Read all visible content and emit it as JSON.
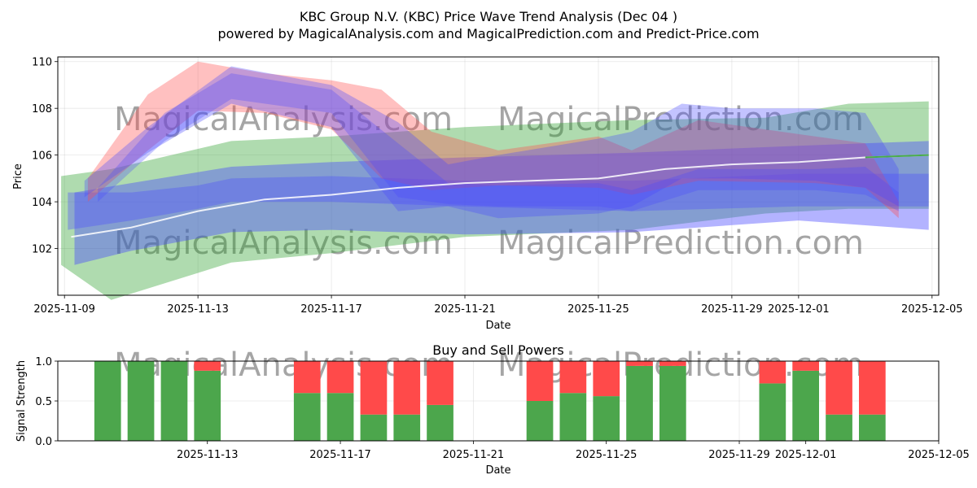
{
  "colors": {
    "green": "#2ca02c",
    "red": "#ff4a4a",
    "blue": "#4a4aff",
    "white": "#ffffff",
    "bar_green": "#4ca64c"
  },
  "chart_data": [
    {
      "type": "area",
      "title_line1": "KBC Group N.V. (KBC) Price Wave Trend Analysis (Dec 04 )",
      "title_line2": "powered by MagicalAnalysis.com and MagicalPrediction.com and Predict-Price.com",
      "xlabel": "Date",
      "ylabel": "Price",
      "ylim": [
        100.0,
        110.2
      ],
      "xlim": [
        -0.2,
        26.2
      ],
      "x_ticks": [
        {
          "label": "2025-11-09",
          "pos": 0
        },
        {
          "label": "2025-11-13",
          "pos": 4
        },
        {
          "label": "2025-11-17",
          "pos": 8
        },
        {
          "label": "2025-11-21",
          "pos": 12
        },
        {
          "label": "2025-11-25",
          "pos": 16
        },
        {
          "label": "2025-11-29",
          "pos": 20
        },
        {
          "label": "2025-12-01",
          "pos": 22
        },
        {
          "label": "2025-12-05",
          "pos": 26
        }
      ],
      "y_ticks": [
        102,
        104,
        106,
        108,
        110
      ],
      "watermarks": [
        "MagicalAnalysis.com",
        "MagicalPrediction.com"
      ],
      "bands": [
        {
          "name": "green-wide",
          "color": "green",
          "opacity": 0.38,
          "x": [
            -0.1,
            1.4,
            5,
            8,
            12,
            17,
            21,
            23.5,
            25.9
          ],
          "upper": [
            105.1,
            105.4,
            106.6,
            106.8,
            107.2,
            107.5,
            107.6,
            108.2,
            108.3
          ],
          "lower": [
            101.3,
            99.8,
            101.4,
            101.8,
            102.5,
            102.8,
            103.5,
            103.7,
            103.7
          ]
        },
        {
          "name": "blue-wide",
          "color": "blue",
          "opacity": 0.42,
          "x": [
            0.3,
            2,
            5,
            8,
            12,
            17,
            22,
            25.9
          ],
          "upper": [
            104.4,
            104.8,
            105.5,
            105.7,
            105.9,
            106.1,
            106.4,
            106.6
          ],
          "lower": [
            101.3,
            101.9,
            102.7,
            102.8,
            102.6,
            102.7,
            103.2,
            102.8
          ]
        },
        {
          "name": "blue-narrow",
          "color": "blue",
          "opacity": 0.35,
          "x": [
            0.1,
            2,
            4,
            5,
            8,
            12,
            17,
            22,
            25.9
          ],
          "upper": [
            104.4,
            104.4,
            104.7,
            105.0,
            105.1,
            104.9,
            104.9,
            105.2,
            105.2
          ],
          "lower": [
            102.8,
            103.2,
            103.7,
            104.0,
            104.0,
            103.8,
            103.6,
            103.8,
            103.8
          ]
        },
        {
          "name": "red-wave",
          "color": "red",
          "opacity": 0.35,
          "x": [
            0.7,
            2.5,
            4,
            6,
            8,
            9.5,
            11,
            13,
            16,
            17,
            19,
            22.5,
            24,
            25
          ],
          "upper": [
            105.0,
            108.6,
            110.0,
            109.5,
            109.2,
            108.8,
            107.0,
            106.2,
            106.8,
            106.2,
            107.5,
            106.8,
            106.5,
            104.0
          ],
          "lower": [
            104.0,
            106.2,
            107.9,
            107.8,
            107.1,
            105.0,
            104.5,
            104.7,
            104.6,
            104.3,
            104.9,
            104.8,
            104.6,
            103.3
          ]
        },
        {
          "name": "blue-wave",
          "color": "blue",
          "opacity": 0.33,
          "x": [
            0.6,
            2.5,
            5,
            8,
            10,
            11.5,
            13,
            16,
            17,
            18.5,
            20,
            22.5,
            24,
            25
          ],
          "upper": [
            104.9,
            107.2,
            109.8,
            109.0,
            107.4,
            105.6,
            106.0,
            106.7,
            107.0,
            108.2,
            108.0,
            108.0,
            107.8,
            105.4
          ],
          "lower": [
            104.2,
            106.1,
            108.2,
            107.2,
            103.6,
            103.8,
            103.3,
            103.5,
            103.8,
            105.0,
            105.0,
            104.9,
            104.6,
            103.8
          ]
        },
        {
          "name": "purple-core",
          "color": "blue",
          "opacity": 0.3,
          "x": [
            1.0,
            3,
            5,
            8,
            10,
            11.5,
            13,
            16,
            17,
            19,
            22.5,
            24,
            25
          ],
          "upper": [
            104.6,
            107.8,
            109.5,
            108.8,
            106.5,
            104.8,
            104.7,
            104.8,
            104.5,
            105.4,
            105.4,
            105.5,
            104.4
          ],
          "lower": [
            104.0,
            106.6,
            108.4,
            107.8,
            104.2,
            103.9,
            103.8,
            103.8,
            103.6,
            104.5,
            104.5,
            104.3,
            103.6
          ]
        }
      ],
      "series": [
        {
          "name": "center-line",
          "color": "white",
          "x": [
            0.2,
            2,
            4,
            6,
            8,
            10,
            12,
            14,
            16,
            18,
            20,
            22,
            24,
            25.9
          ],
          "values": [
            102.5,
            102.9,
            103.6,
            104.1,
            104.3,
            104.6,
            104.8,
            104.9,
            105.0,
            105.4,
            105.6,
            105.7,
            105.9,
            106.0
          ]
        },
        {
          "name": "green-mid",
          "color": "green",
          "x": [
            24,
            25.9
          ],
          "values": [
            105.9,
            106.0
          ]
        }
      ]
    },
    {
      "type": "bar",
      "title": "Buy and Sell Powers",
      "xlabel": "Date",
      "ylabel": "Signal Strength",
      "ylim": [
        0,
        1.0
      ],
      "xlim": [
        -3.5,
        23.0
      ],
      "y_ticks": [
        0.0,
        0.5,
        1.0
      ],
      "x_ticks": [
        {
          "label": "2025-11-13",
          "pos": 1
        },
        {
          "label": "2025-11-17",
          "pos": 5
        },
        {
          "label": "2025-11-21",
          "pos": 9
        },
        {
          "label": "2025-11-25",
          "pos": 13
        },
        {
          "label": "2025-11-29",
          "pos": 17
        },
        {
          "label": "2025-12-01",
          "pos": 19
        },
        {
          "label": "2025-12-05",
          "pos": 23
        }
      ],
      "bars": [
        {
          "x": -2,
          "buy": 1.0
        },
        {
          "x": -1,
          "buy": 1.0
        },
        {
          "x": 0,
          "buy": 1.0
        },
        {
          "x": 1,
          "buy": 0.88
        },
        {
          "x": 4,
          "buy": 0.6
        },
        {
          "x": 5,
          "buy": 0.6
        },
        {
          "x": 6,
          "buy": 0.33
        },
        {
          "x": 7,
          "buy": 0.33
        },
        {
          "x": 8,
          "buy": 0.45
        },
        {
          "x": 11,
          "buy": 0.5
        },
        {
          "x": 12,
          "buy": 0.6
        },
        {
          "x": 13,
          "buy": 0.56
        },
        {
          "x": 14,
          "buy": 0.94
        },
        {
          "x": 15,
          "buy": 0.94
        },
        {
          "x": 18,
          "buy": 0.72
        },
        {
          "x": 19,
          "buy": 0.88
        },
        {
          "x": 20,
          "buy": 0.33
        },
        {
          "x": 21,
          "buy": 0.33
        }
      ]
    }
  ]
}
